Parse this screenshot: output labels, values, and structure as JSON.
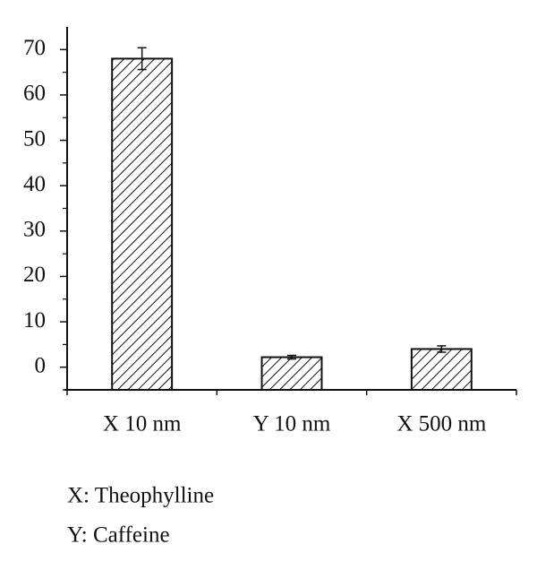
{
  "chart_data": {
    "type": "bar",
    "categories": [
      "X 10 nm",
      "Y 10 nm",
      "X 500 nm"
    ],
    "values": [
      68,
      2.2,
      4.0
    ],
    "errors": [
      2.4,
      0.4,
      0.7
    ],
    "color": "#111111",
    "ylim": [
      -5,
      75
    ],
    "yticks": [
      0,
      10,
      20,
      30,
      40,
      50,
      60,
      70
    ],
    "minor_yticks": [
      -5,
      5,
      15,
      25,
      35,
      45,
      55,
      65
    ],
    "notes": [
      "X: Theophylline",
      "Y: Caffeine"
    ]
  }
}
